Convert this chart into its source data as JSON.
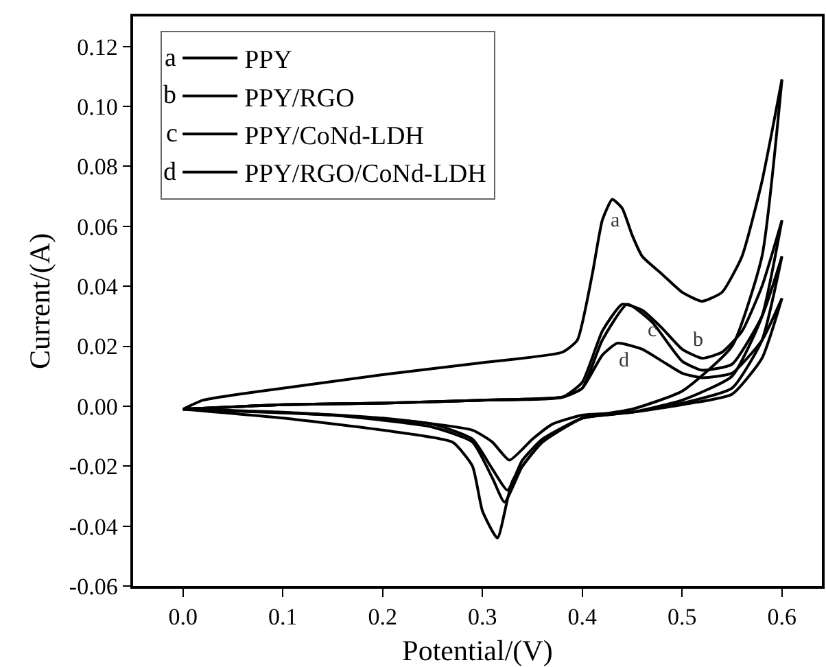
{
  "chart_data": {
    "type": "line",
    "xlabel": "Potential/(V)",
    "ylabel": "Current/(A)",
    "xlim": [
      -0.05,
      0.64
    ],
    "xticks": [
      {
        "value": 0,
        "label": "0.0"
      },
      0.1,
      0.2,
      0.3,
      0.4,
      0.5,
      0.6
    ],
    "ylim": [
      -0.06,
      0.13
    ],
    "yticks": [
      {
        "value": -0.06,
        "label": "-0.06"
      },
      {
        "value": -0.04,
        "label": "-0.04"
      },
      {
        "value": -0.02,
        "label": "-0.02"
      },
      {
        "value": 0,
        "label": "0.00"
      },
      0.02,
      0.04,
      0.06,
      0.08,
      {
        "value": 0.1,
        "label": "0.10"
      },
      0.12
    ],
    "grid": false,
    "legend": "top left",
    "marker": "none",
    "line_style": "solid",
    "series": [
      {
        "name": "PPY",
        "color": "#000000",
        "x": [
          0,
          0.02,
          0.05,
          0.1,
          0.2,
          0.3,
          0.38,
          0.395,
          0.41,
          0.42,
          0.43,
          0.44,
          0.45,
          0.46,
          0.48,
          0.5,
          0.52,
          0.54,
          0.56,
          0.58,
          0.6
        ],
        "values": [
          -0.001,
          0.002,
          0.0037,
          0.006,
          0.0105,
          0.0145,
          0.018,
          0.022,
          0.044,
          0.062,
          0.069,
          0.066,
          0.057,
          0.05,
          0.044,
          0.038,
          0.035,
          0.038,
          0.05,
          0.075,
          0.109
        ]
      },
      {
        "color": "#000000",
        "x": [
          0.6,
          0.58,
          0.55,
          0.5,
          0.45,
          0.4,
          0.36,
          0.33,
          0.315,
          0.3,
          0.29,
          0.27,
          0.2,
          0.1,
          0
        ],
        "values": [
          0.109,
          0.05,
          0.02,
          0.005,
          -0.001,
          -0.004,
          -0.012,
          -0.025,
          -0.044,
          -0.035,
          -0.02,
          -0.012,
          -0.008,
          -0.004,
          -0.001
        ]
      },
      {
        "name": "PPY/RGO",
        "color": "#000000",
        "x": [
          0,
          0.1,
          0.2,
          0.3,
          0.38,
          0.4,
          0.42,
          0.44,
          0.46,
          0.48,
          0.5,
          0.52,
          0.54,
          0.56,
          0.58,
          0.6
        ],
        "values": [
          -0.001,
          0.0005,
          0.001,
          0.002,
          0.003,
          0.008,
          0.025,
          0.034,
          0.032,
          0.026,
          0.019,
          0.016,
          0.018,
          0.025,
          0.04,
          0.062
        ]
      },
      {
        "color": "#000000",
        "x": [
          0.6,
          0.58,
          0.55,
          0.5,
          0.45,
          0.4,
          0.36,
          0.34,
          0.322,
          0.31,
          0.29,
          0.25,
          0.15,
          0
        ],
        "values": [
          0.062,
          0.03,
          0.01,
          0.002,
          -0.002,
          -0.004,
          -0.012,
          -0.02,
          -0.032,
          -0.024,
          -0.012,
          -0.007,
          -0.003,
          -0.001
        ]
      },
      {
        "name": "PPY/CoNd-LDH",
        "color": "#000000",
        "x": [
          0,
          0.1,
          0.2,
          0.3,
          0.38,
          0.4,
          0.42,
          0.445,
          0.47,
          0.5,
          0.52,
          0.55,
          0.58,
          0.6
        ],
        "values": [
          -0.001,
          0.0005,
          0.001,
          0.002,
          0.003,
          0.006,
          0.022,
          0.034,
          0.028,
          0.015,
          0.012,
          0.014,
          0.03,
          0.05
        ]
      },
      {
        "color": "#000000",
        "x": [
          0.6,
          0.58,
          0.55,
          0.5,
          0.45,
          0.4,
          0.36,
          0.34,
          0.325,
          0.31,
          0.29,
          0.25,
          0.15,
          0
        ],
        "values": [
          0.05,
          0.022,
          0.006,
          0.001,
          -0.002,
          -0.004,
          -0.011,
          -0.018,
          -0.028,
          -0.021,
          -0.011,
          -0.006,
          -0.003,
          -0.001
        ]
      },
      {
        "name": "PPY/RGO/CoNd-LDH",
        "color": "#000000",
        "x": [
          0,
          0.1,
          0.2,
          0.3,
          0.38,
          0.4,
          0.42,
          0.435,
          0.46,
          0.48,
          0.5,
          0.52,
          0.55,
          0.58,
          0.6
        ],
        "values": [
          -0.001,
          0.0005,
          0.001,
          0.002,
          0.003,
          0.006,
          0.017,
          0.021,
          0.019,
          0.015,
          0.011,
          0.0095,
          0.011,
          0.022,
          0.036
        ]
      },
      {
        "color": "#000000",
        "x": [
          0.6,
          0.58,
          0.55,
          0.5,
          0.45,
          0.4,
          0.37,
          0.35,
          0.327,
          0.31,
          0.29,
          0.2,
          0.1,
          0
        ],
        "values": [
          0.036,
          0.016,
          0.004,
          0.0005,
          -0.002,
          -0.003,
          -0.006,
          -0.011,
          -0.018,
          -0.012,
          -0.008,
          -0.004,
          -0.002,
          -0.001
        ]
      }
    ],
    "annotations": [
      "a",
      "b",
      "c",
      "d"
    ]
  }
}
